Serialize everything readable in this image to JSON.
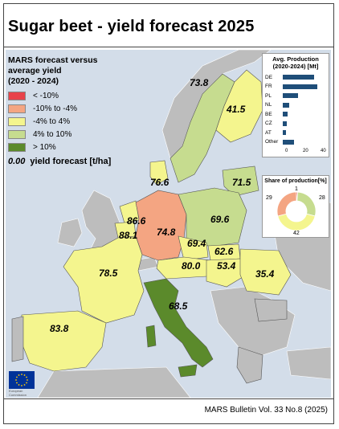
{
  "title": "Sugar beet - yield forecast 2025",
  "legend": {
    "title_line1": "MARS forecast versus average yield",
    "title_line2": "(2020 - 2024)",
    "items": [
      {
        "label": "< -10%",
        "color": "#e8434b"
      },
      {
        "label": "-10% to -4%",
        "color": "#f4a582"
      },
      {
        "label": "-4% to 4%",
        "color": "#f4f58e"
      },
      {
        "label": "4% to 10%",
        "color": "#c6dc8f"
      },
      {
        "label": "> 10%",
        "color": "#5b8a2b"
      }
    ],
    "value_example": "0.00",
    "value_caption": "yield forecast [t/ha]"
  },
  "countries": [
    {
      "name": "SE",
      "value": "73.8"
    },
    {
      "name": "FI",
      "value": "41.5"
    },
    {
      "name": "DK",
      "value": "76.6"
    },
    {
      "name": "LT",
      "value": "71.5"
    },
    {
      "name": "NL",
      "value": "86.6"
    },
    {
      "name": "BE",
      "value": "88.1"
    },
    {
      "name": "DE",
      "value": "74.8"
    },
    {
      "name": "PL",
      "value": "69.6"
    },
    {
      "name": "CZ",
      "value": "69.4"
    },
    {
      "name": "SK",
      "value": "62.6"
    },
    {
      "name": "AT",
      "value": "80.0"
    },
    {
      "name": "HU",
      "value": "53.4"
    },
    {
      "name": "RO",
      "value": "35.4"
    },
    {
      "name": "FR",
      "value": "78.5"
    },
    {
      "name": "IT",
      "value": "68.5"
    },
    {
      "name": "ES",
      "value": "83.8"
    }
  ],
  "production_inset": {
    "title_line1": "Avg. Production",
    "title_line2": "(2020-2024) [Mt]",
    "ticks": [
      "0",
      "20",
      "40"
    ],
    "bars": [
      {
        "label": "DE",
        "value": 31
      },
      {
        "label": "FR",
        "value": 34
      },
      {
        "label": "PL",
        "value": 15
      },
      {
        "label": "NL",
        "value": 6.5
      },
      {
        "label": "BE",
        "value": 5
      },
      {
        "label": "CZ",
        "value": 4
      },
      {
        "label": "AT",
        "value": 3
      },
      {
        "label": "Other",
        "value": 11
      }
    ],
    "bar_color": "#1f4e79",
    "axis_max": 40
  },
  "share_inset": {
    "title": "Share of production[%]",
    "slices": [
      {
        "label": "1",
        "value": 1,
        "color": "#e8434b"
      },
      {
        "label": "28",
        "value": 28,
        "color": "#c6dc8f"
      },
      {
        "label": "42",
        "value": 42,
        "color": "#f4f58e"
      },
      {
        "label": "29",
        "value": 29,
        "color": "#f4a582"
      }
    ]
  },
  "eu_logo_text": "European Commission",
  "footer": "MARS Bulletin Vol. 33 No.8 (2025)"
}
